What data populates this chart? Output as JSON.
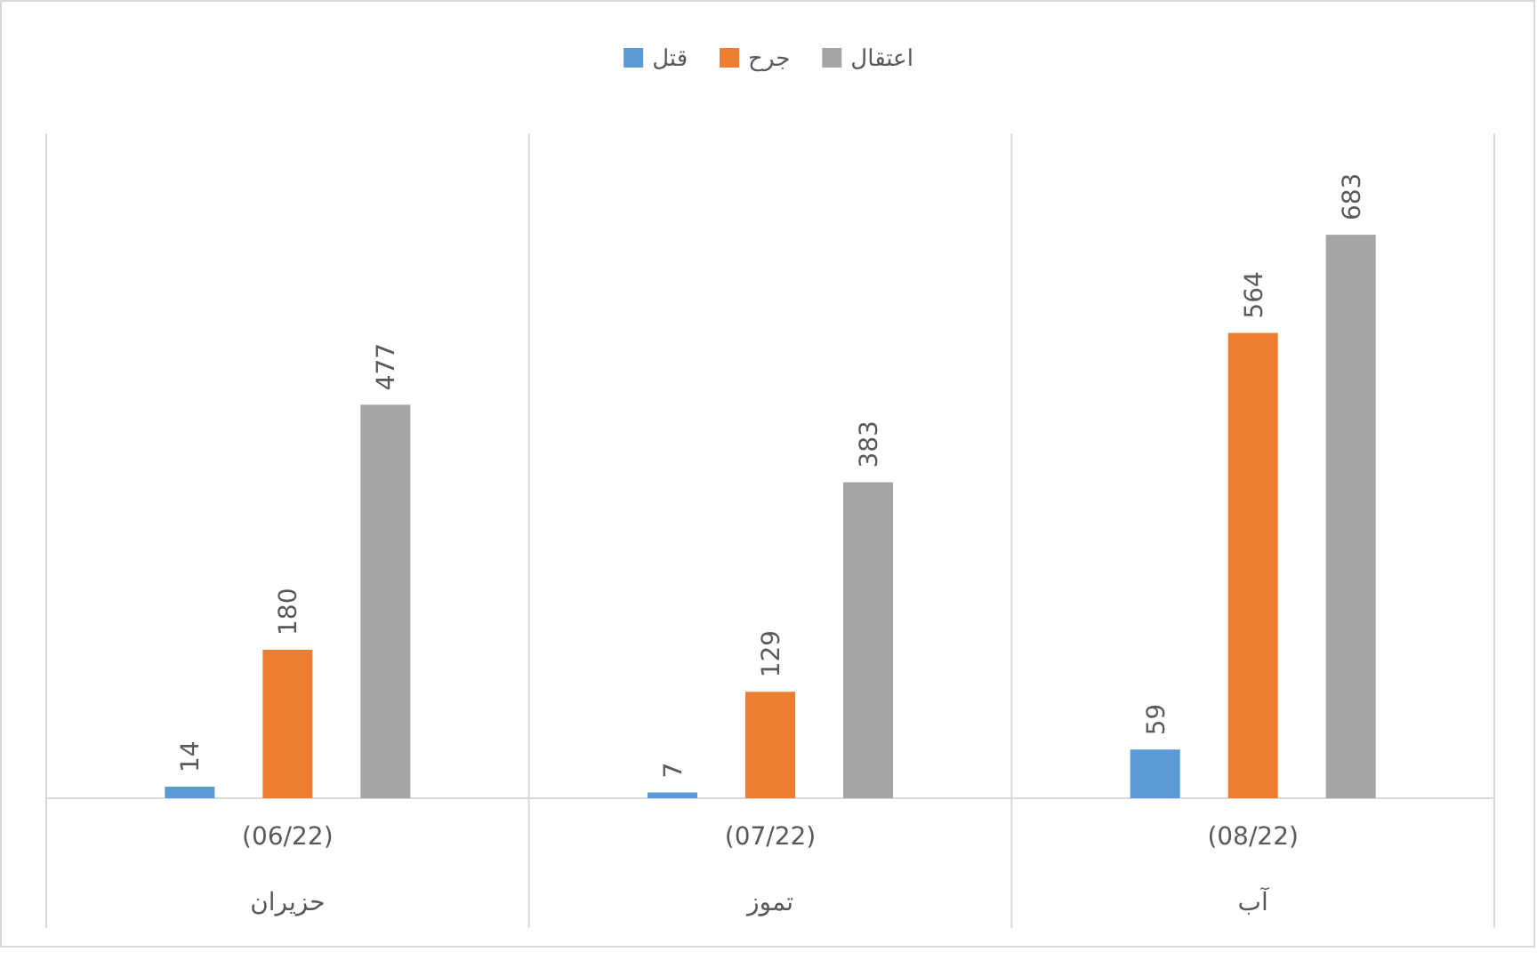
{
  "chart_data": {
    "type": "bar",
    "categories": [
      "(06/22)\nحزيران",
      "(07/22)\nتموز",
      "(08/22)\nآب"
    ],
    "series": [
      {
        "name": "قتل",
        "color": "#5b9bd5",
        "values": [
          14,
          7,
          59
        ]
      },
      {
        "name": "جرح",
        "color": "#ed7d31",
        "values": [
          180,
          129,
          564
        ]
      },
      {
        "name": "اعتقال",
        "color": "#a5a5a5",
        "values": [
          477,
          383,
          683
        ]
      }
    ],
    "data_labels": true,
    "legend": "top"
  }
}
